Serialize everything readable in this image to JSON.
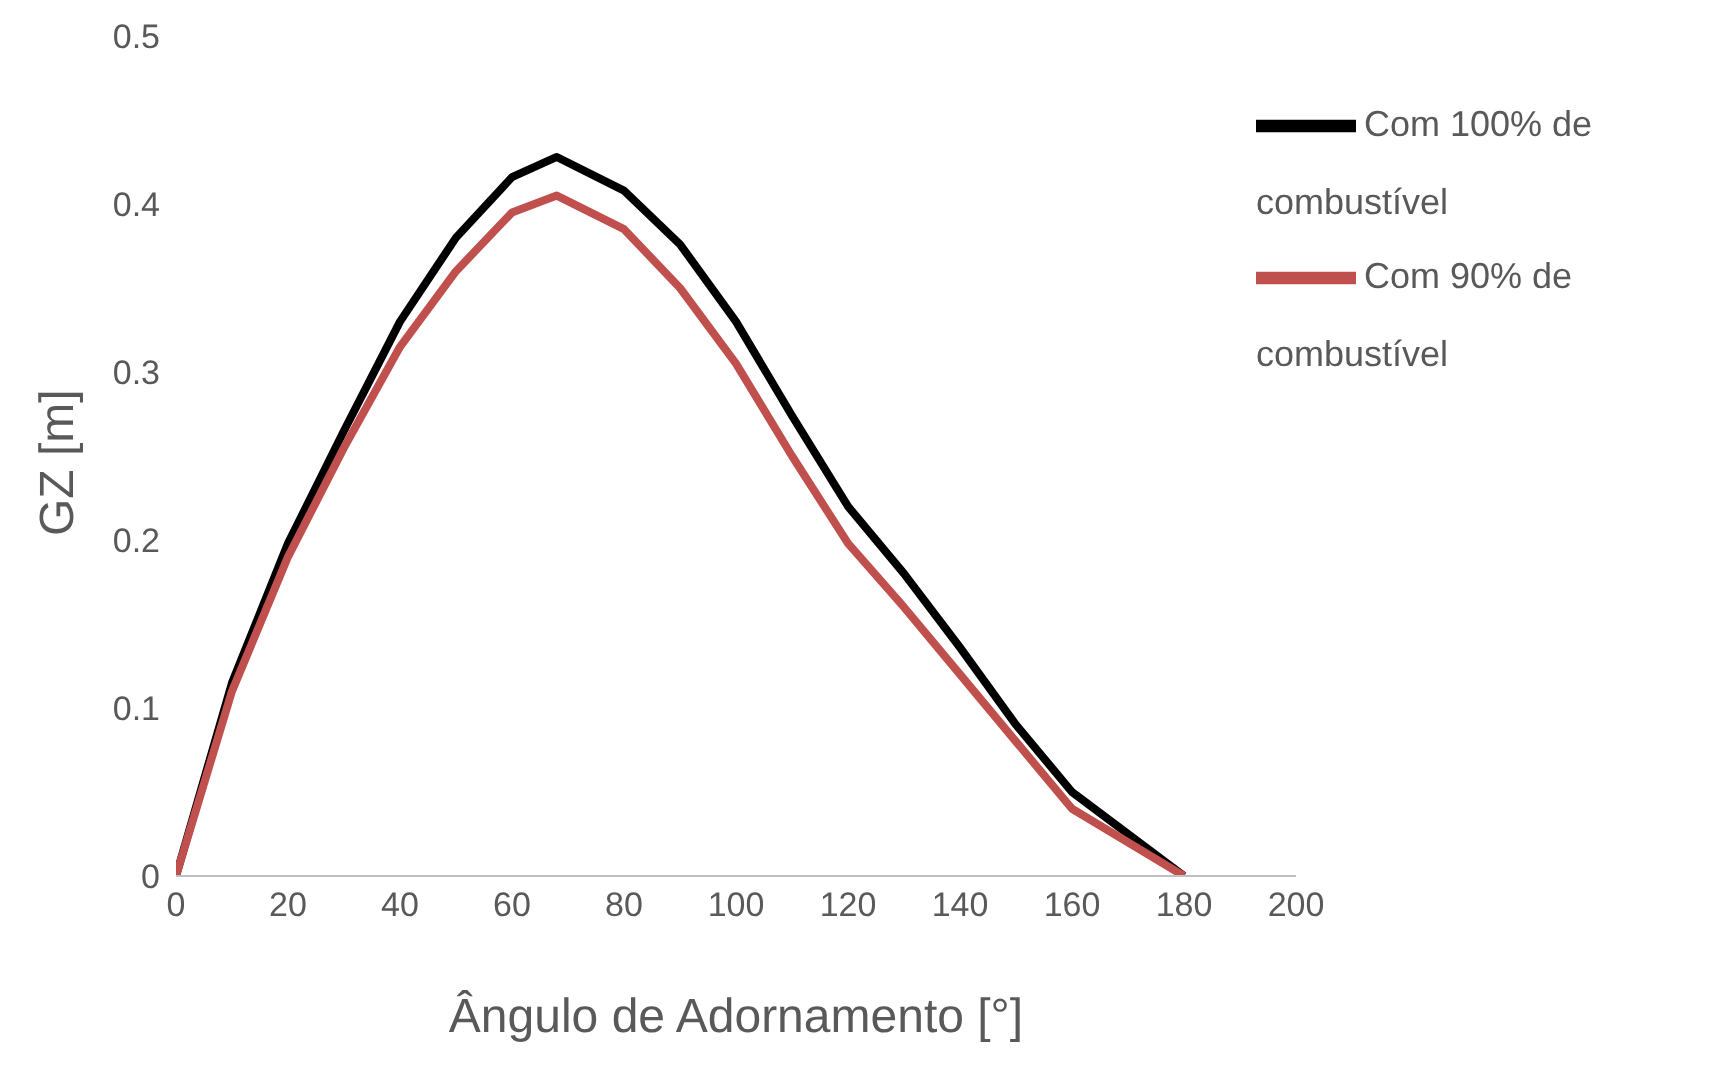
{
  "chart_data": {
    "type": "line",
    "xlabel": "Ângulo de Adornamento [°]",
    "ylabel": "GZ [m]",
    "x": [
      0,
      10,
      20,
      30,
      40,
      50,
      60,
      68,
      80,
      90,
      100,
      110,
      120,
      130,
      140,
      150,
      160,
      180
    ],
    "series": [
      {
        "name": "Com 100% de combustível",
        "color": "#000000",
        "values": [
          0,
          0.115,
          0.198,
          0.265,
          0.33,
          0.38,
          0.416,
          0.428,
          0.408,
          0.376,
          0.33,
          0.274,
          0.22,
          0.18,
          0.136,
          0.09,
          0.05,
          0
        ]
      },
      {
        "name": "Com 90% de combustível",
        "color": "#c0504d",
        "values": [
          0,
          0.11,
          0.19,
          0.255,
          0.315,
          0.36,
          0.395,
          0.405,
          0.385,
          0.35,
          0.305,
          0.25,
          0.198,
          0.16,
          0.12,
          0.08,
          0.04,
          0
        ]
      }
    ],
    "xlim": [
      0,
      200
    ],
    "xticks": [
      0,
      20,
      40,
      60,
      80,
      100,
      120,
      140,
      160,
      180,
      200
    ],
    "ylim": [
      0,
      0.5
    ],
    "yticks": [
      0,
      0.1,
      0.2,
      0.3,
      0.4,
      0.5
    ],
    "grid": false,
    "legend": "top right",
    "marker": "none",
    "line_style": "solid"
  }
}
